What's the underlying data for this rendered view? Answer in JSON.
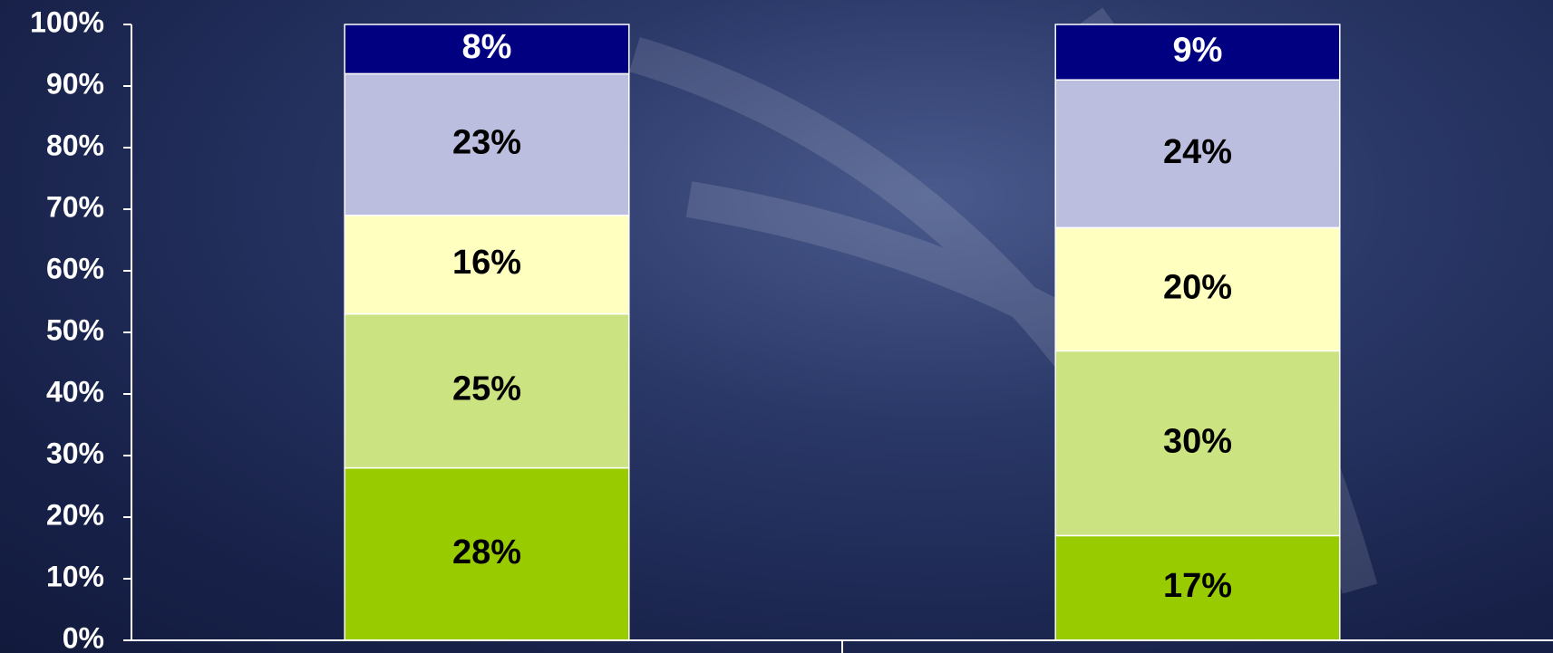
{
  "chart_data": {
    "type": "stacked_bar",
    "categories": [
      null,
      null
    ],
    "series": [
      {
        "color": "#99cc00",
        "values": [
          28,
          17
        ],
        "value_labels": [
          "28%",
          "17%"
        ]
      },
      {
        "color": "#cce382",
        "values": [
          25,
          30
        ],
        "value_labels": [
          "25%",
          "30%"
        ]
      },
      {
        "color": "#ffffc0",
        "values": [
          16,
          20
        ],
        "value_labels": [
          "16%",
          "20%"
        ]
      },
      {
        "color": "#bcbee0",
        "values": [
          23,
          24
        ],
        "value_labels": [
          "23%",
          "24%"
        ]
      },
      {
        "color": "#000080",
        "values": [
          8,
          9
        ],
        "value_labels": [
          "8%",
          "9%"
        ]
      }
    ],
    "ylim": [
      0,
      100
    ],
    "yticks": [
      {
        "value": 0,
        "label": "0%"
      },
      {
        "value": 10,
        "label": "10%"
      },
      {
        "value": 20,
        "label": "20%"
      },
      {
        "value": 30,
        "label": "30%"
      },
      {
        "value": 40,
        "label": "40%"
      },
      {
        "value": 50,
        "label": "50%"
      },
      {
        "value": 60,
        "label": "60%"
      },
      {
        "value": 70,
        "label": "70%"
      },
      {
        "value": 80,
        "label": "80%"
      },
      {
        "value": 90,
        "label": "90%"
      },
      {
        "value": 100,
        "label": "100%"
      }
    ],
    "grid": false
  }
}
